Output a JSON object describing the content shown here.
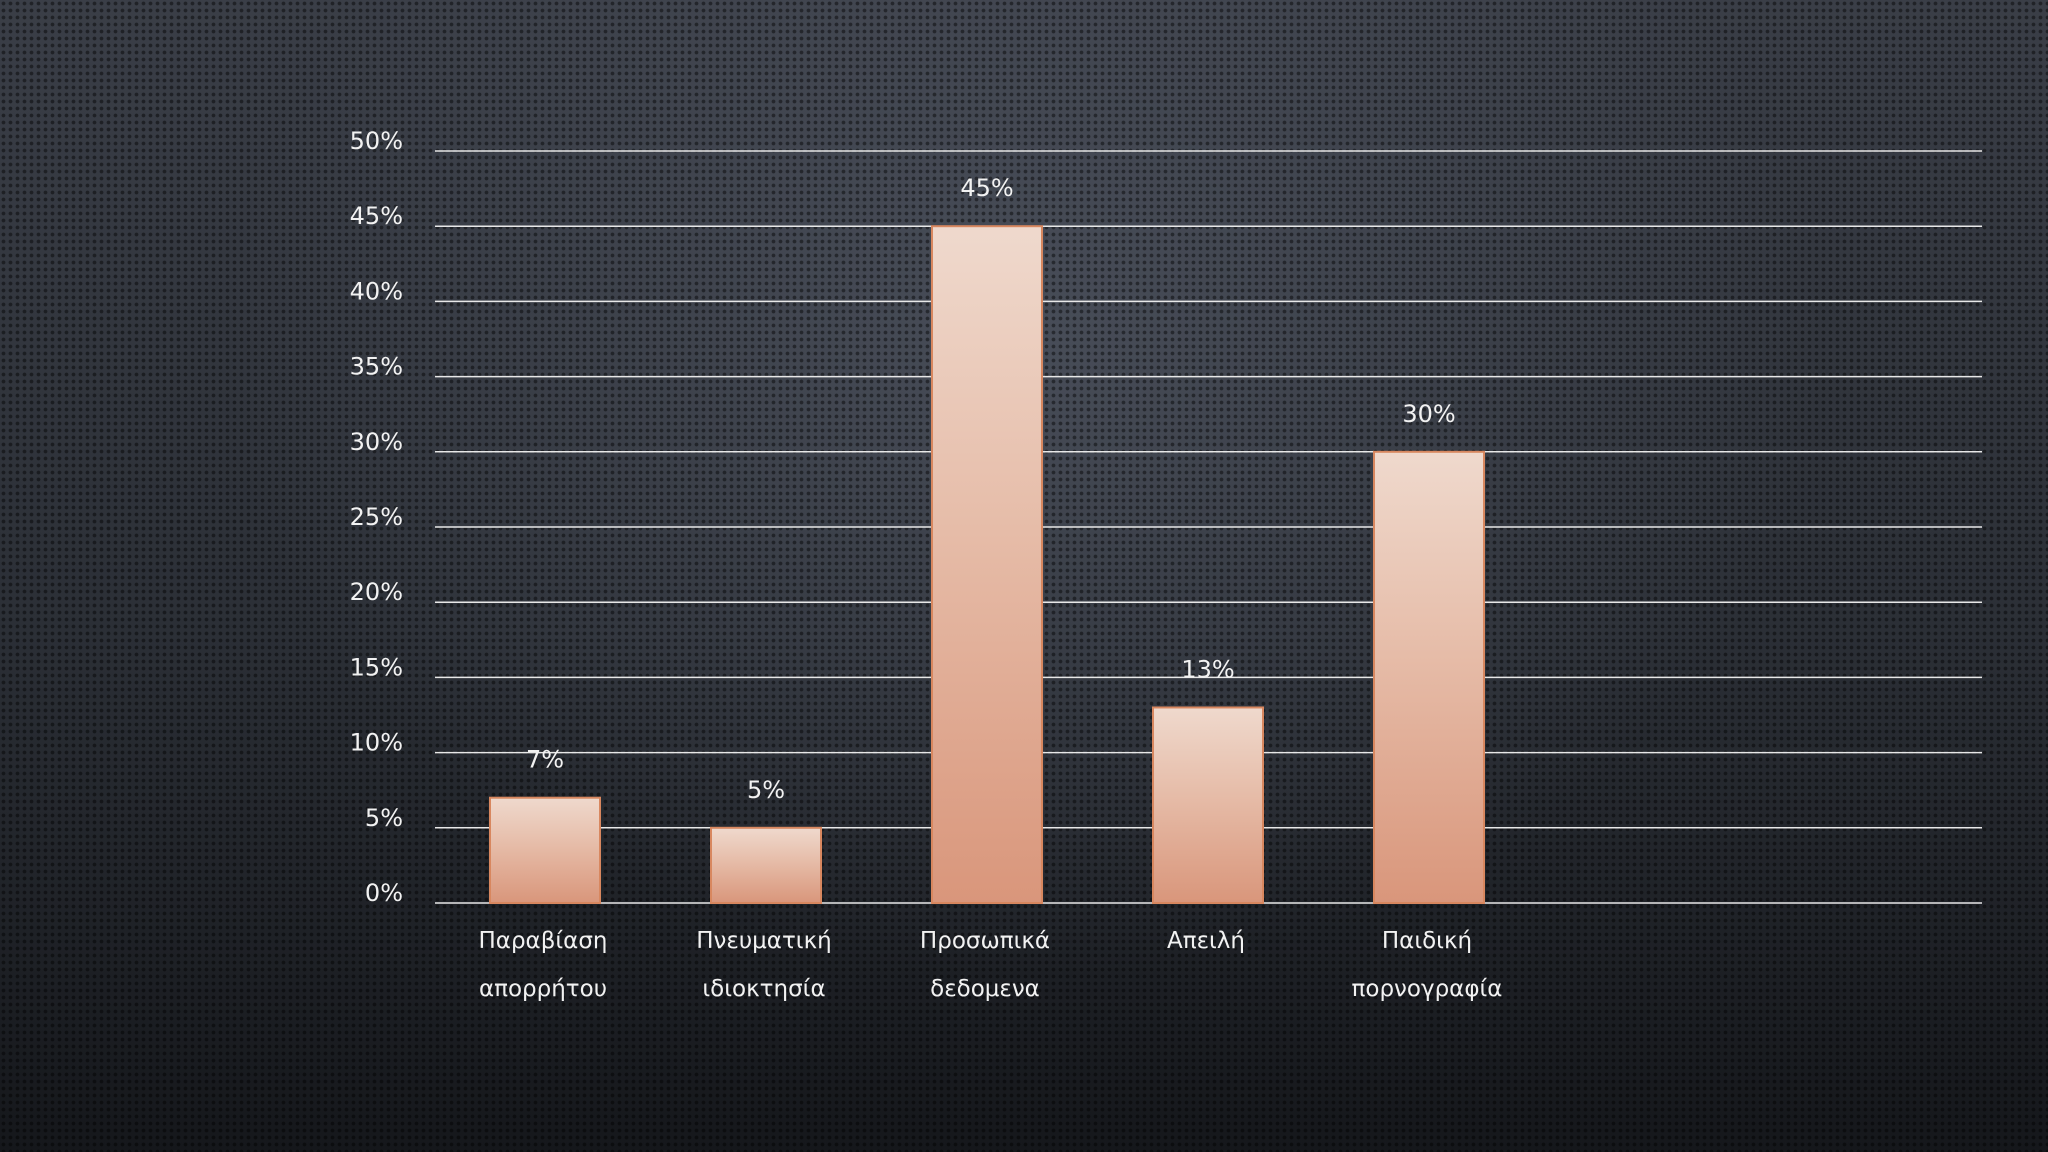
{
  "chart_data": {
    "type": "bar",
    "categories": [
      [
        "Παραβίαση",
        "απορρήτου"
      ],
      [
        "Πνευματική",
        "ιδιοκτησία"
      ],
      [
        "Προσωπικά",
        "δεδομενα"
      ],
      [
        "Απειλή"
      ],
      [
        "Παιδική",
        "πορνογραφία"
      ]
    ],
    "values": [
      7,
      5,
      45,
      13,
      30
    ],
    "data_labels": [
      "7%",
      "5%",
      "45%",
      "13%",
      "30%"
    ],
    "y_ticks": [
      0,
      5,
      10,
      15,
      20,
      25,
      30,
      35,
      40,
      45,
      50
    ],
    "y_tick_labels": [
      "0%",
      "5%",
      "10%",
      "15%",
      "20%",
      "25%",
      "30%",
      "35%",
      "40%",
      "45%",
      "50%"
    ],
    "ylim": [
      0,
      50
    ],
    "unit": "%",
    "grid": true,
    "legend": "none",
    "colors": {
      "bar_top": "#efd9cd",
      "bar_bottom": "#d9967b",
      "bar_stroke": "#d8875f",
      "gridline": "#e8e8e8",
      "text": "#f2f2f2"
    }
  }
}
